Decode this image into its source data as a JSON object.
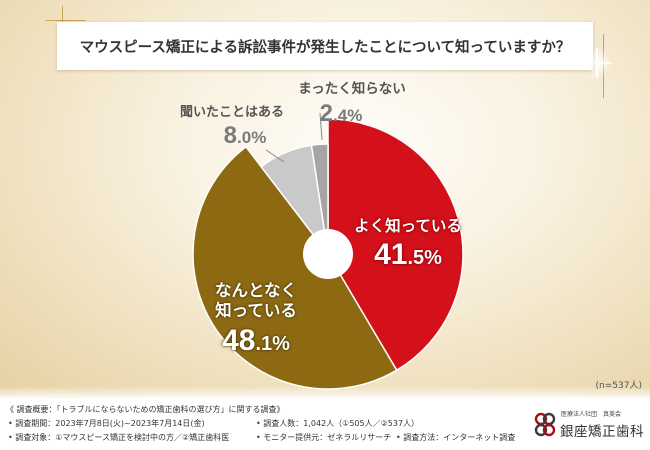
{
  "chart_data": {
    "type": "pie",
    "title": "マウスピース矯正による訴訟事件が発生したことについて知っていますか？",
    "categories": [
      "よく知っている",
      "なんとなく\n知っている",
      "聞いたことはある",
      "まったく知らない"
    ],
    "values": [
      41.5,
      48.1,
      8.0,
      2.4
    ],
    "unit": "%",
    "colors": [
      "#d4101a",
      "#8d6a12",
      "#c9c9c9",
      "#a5a5a5"
    ],
    "center_hole": true,
    "note": "(n=537人)"
  },
  "survey": {
    "heading": "《 調査概要：「トラブルにならないための矯正歯科の選び方」に関する調査》",
    "items": [
      "調査期間：2023年7月8日(火)~2023年7月14日(金)",
      "調査人数：1,042人（①505人／②537人）",
      "調査対象：①マウスピース矯正を検討中の方／②矯正歯科医",
      "モニター提供元：ゼネラルリサーチ",
      "調査方法：インターネット調査"
    ]
  },
  "logo": {
    "org": "医療法人社団　真美会",
    "name": "銀座矯正歯科",
    "icon": "four-rings-logo-icon",
    "color": "#a3101a"
  },
  "theme": {
    "background": "#efe0be",
    "accent_gold": "#c7a553",
    "label_gray": "#555555"
  }
}
